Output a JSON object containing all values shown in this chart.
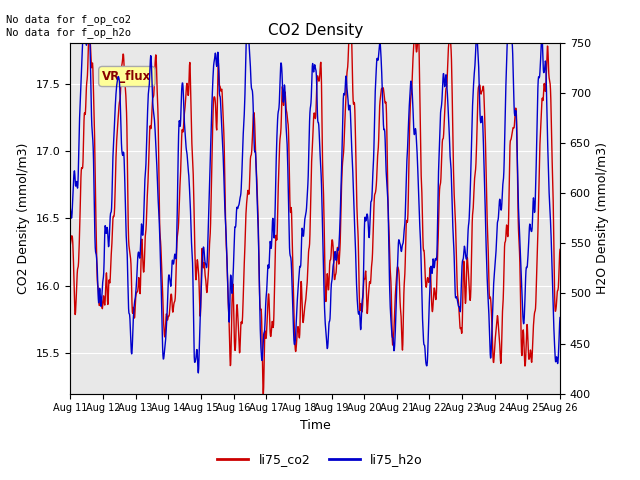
{
  "title": "CO2 Density",
  "xlabel": "Time",
  "ylabel_left": "CO2 Density (mmol/m3)",
  "ylabel_right": "H2O Density (mmol/m3)",
  "text_top_left": "No data for f_op_co2\nNo data for f_op_h2o",
  "legend_label1": "li75_co2",
  "legend_label2": "li75_h2o",
  "vr_flux_label": "VR_flux",
  "ylim_left": [
    15.2,
    17.8
  ],
  "ylim_right": [
    400,
    750
  ],
  "co2_color": "#cc0000",
  "h2o_color": "#0000cc",
  "background_color": "#ffffff",
  "plot_bg_color": "#e8e8e8",
  "vr_flux_bg": "#ffff99",
  "vr_flux_fg": "#880000",
  "linewidth": 1.0,
  "x_tick_labels": [
    "Aug 11",
    "Aug 12",
    "Aug 13",
    "Aug 14",
    "Aug 15",
    "Aug 16",
    "Aug 17",
    "Aug 18",
    "Aug 19",
    "Aug 20",
    "Aug 21",
    "Aug 22",
    "Aug 23",
    "Aug 24",
    "Aug 25",
    "Aug 26"
  ],
  "n_days": 15,
  "seed": 42
}
